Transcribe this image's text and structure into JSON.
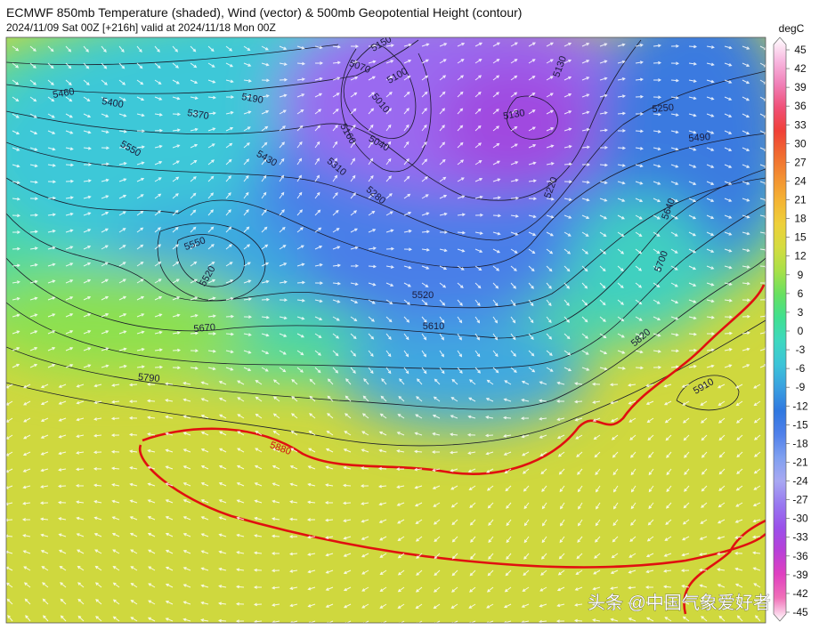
{
  "header": {
    "title": "ECMWF 850mb Temperature (shaded), Wind (vector) & 500mb Geopotential Height (contour)",
    "subtitle": "2024/11/09 Sat 00Z [+216h] valid at 2024/11/18 Mon 00Z"
  },
  "colorbar": {
    "unit": "degC",
    "ticks": [
      45,
      42,
      39,
      36,
      33,
      30,
      27,
      24,
      21,
      18,
      15,
      12,
      9,
      6,
      3,
      0,
      -3,
      -6,
      -9,
      -12,
      -15,
      -18,
      -21,
      -24,
      -27,
      -30,
      -33,
      -36,
      -39,
      -42,
      -45
    ]
  },
  "contour_labels": [
    5150,
    5070,
    5100,
    5010,
    5040,
    5160,
    5130,
    5130,
    5250,
    5490,
    5460,
    5400,
    5370,
    5190,
    5550,
    5430,
    5310,
    5280,
    5220,
    5640,
    5700,
    5550,
    5520,
    5520,
    5610,
    5670,
    5820,
    5910,
    5790,
    5880
  ],
  "watermark": "头条 @中国气象爱好者"
}
